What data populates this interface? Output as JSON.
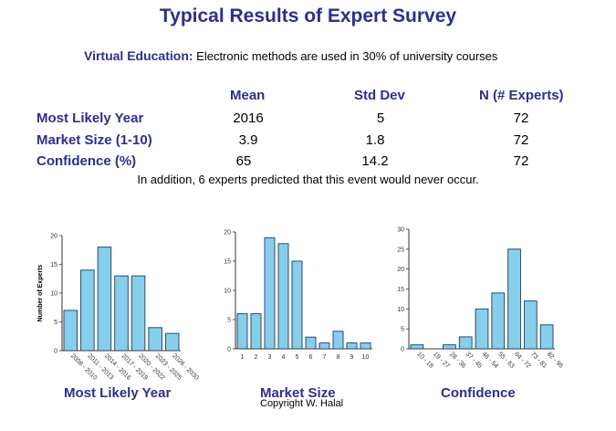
{
  "title": "Typical Results of Expert Survey",
  "subtitle": {
    "label": "Virtual Education:",
    "text": " Electronic methods are used in 30% of university courses"
  },
  "table": {
    "headers": [
      "Mean",
      "Std Dev",
      "N (# Experts)"
    ],
    "rows": [
      {
        "label": "Most Likely Year",
        "mean": "2016",
        "std": "5",
        "n": "72"
      },
      {
        "label": "Market Size (1-10)",
        "mean": "3.9",
        "std": "1.8",
        "n": "72"
      },
      {
        "label": "Confidence (%)",
        "mean": "65",
        "std": "14.2",
        "n": "72"
      }
    ]
  },
  "note": "In addition, 6 experts predicted that this event would never occur.",
  "chart_labels": [
    "Most Likely Year",
    "Market Size",
    "Confidence"
  ],
  "copyright": "Copyright W. Halal",
  "bar_color": "#87ceeb",
  "chart_data": [
    {
      "type": "bar",
      "categories": [
        "2008 - 2010",
        "2011 - 2013",
        "2014 - 2016",
        "2017 - 2019",
        "2020 - 2022",
        "2023 - 2025",
        "2026 - 2030"
      ],
      "values": [
        7,
        14,
        18,
        13,
        13,
        4,
        3
      ],
      "ylabel": "Number of Experts",
      "ylim": [
        0,
        20
      ],
      "yticks": [
        0,
        5,
        10,
        15,
        20
      ],
      "grid": false
    },
    {
      "type": "bar",
      "categories": [
        "1",
        "2",
        "3",
        "4",
        "5",
        "6",
        "7",
        "8",
        "9",
        "10"
      ],
      "values": [
        6,
        6,
        19,
        18,
        15,
        2,
        1,
        3,
        1,
        1
      ],
      "ylim": [
        0,
        20
      ],
      "yticks": [
        0,
        5,
        10,
        15,
        20
      ],
      "grid": false
    },
    {
      "type": "bar",
      "categories": [
        "10 - 18",
        "19 - 27",
        "28 - 36",
        "37 - 45",
        "46 - 54",
        "55 - 63",
        "64 - 72",
        "73 - 81",
        "82 - 95"
      ],
      "values": [
        1,
        0,
        1,
        3,
        10,
        14,
        25,
        12,
        6
      ],
      "ylim": [
        0,
        30
      ],
      "yticks": [
        0,
        5,
        10,
        15,
        20,
        25,
        30
      ],
      "grid": false
    }
  ]
}
